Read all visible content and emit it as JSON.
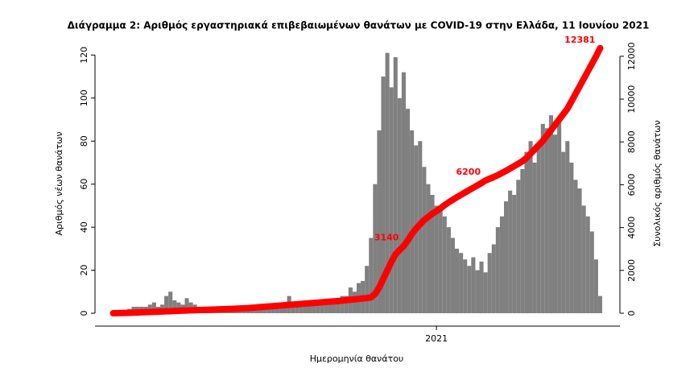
{
  "chart_data": {
    "type": "bar",
    "title": "Διάγραμμα 2: Αριθμός εργαστηριακά επιβεβαιωμένων θανάτων με COVID-19 στην Ελλάδα, 11 Ιουνίου 2021",
    "x_label": "Ημερομηνία θανάτου",
    "y_label": "Αριθμός νέων θανάτων",
    "y2_label": "Συνολικός αριθμός θανάτων",
    "categories": [
      null,
      null,
      null,
      null,
      null,
      null,
      null,
      null,
      null,
      null,
      null,
      null,
      null,
      null,
      null,
      null,
      null,
      null,
      null,
      null,
      null,
      null,
      null,
      null,
      null,
      null,
      null,
      null,
      null,
      null,
      null,
      null,
      null,
      null,
      null,
      null,
      null,
      null,
      null,
      null,
      null,
      null,
      null,
      null,
      null,
      null,
      null,
      null,
      null,
      null,
      null,
      null,
      null,
      null,
      null,
      null,
      null,
      null,
      null,
      null,
      null,
      null,
      null,
      null,
      null,
      null,
      null,
      null,
      null,
      null,
      null,
      null,
      null,
      null,
      null,
      null,
      null,
      null,
      null,
      "2021",
      null,
      null,
      null,
      null,
      null,
      null,
      null,
      null,
      null,
      null,
      null,
      null,
      null,
      null,
      null,
      null,
      null,
      null,
      null,
      null,
      null,
      null,
      null,
      null,
      null,
      null,
      null,
      null,
      null,
      null,
      null,
      null,
      null,
      null,
      null,
      null,
      null,
      null,
      null,
      null
    ],
    "series": [
      {
        "type": "bar",
        "color": "#808080",
        "values": [
          0,
          0,
          1,
          1,
          2,
          3,
          3,
          3,
          3,
          4,
          5,
          3,
          4,
          8,
          10,
          6,
          5,
          4,
          7,
          5,
          4,
          3,
          3,
          2,
          3,
          3,
          2,
          2,
          3,
          2,
          2,
          3,
          2,
          2,
          3,
          3,
          2,
          3,
          4,
          3,
          3,
          4,
          5,
          8,
          4,
          3,
          4,
          5,
          5,
          4,
          5,
          6,
          5,
          6,
          6,
          7,
          8,
          8,
          12,
          10,
          14,
          15,
          22,
          35,
          60,
          85,
          110,
          121,
          105,
          119,
          100,
          112,
          95,
          85,
          78,
          80,
          68,
          60,
          55,
          50,
          48,
          45,
          40,
          35,
          30,
          28,
          25,
          22,
          26,
          20,
          24,
          19,
          28,
          32,
          40,
          45,
          52,
          57,
          55,
          62,
          67,
          75,
          80,
          70,
          78,
          88,
          86,
          92,
          83,
          90,
          75,
          80,
          70,
          62,
          58,
          50,
          45,
          38,
          25,
          8
        ]
      },
      {
        "type": "line",
        "axis": "y2",
        "color": "#ff0000",
        "values": [
          0,
          5,
          10,
          15,
          20,
          28,
          35,
          42,
          50,
          57,
          65,
          72,
          80,
          88,
          96,
          104,
          112,
          120,
          127,
          134,
          141,
          148,
          155,
          162,
          169,
          176,
          183,
          190,
          197,
          204,
          211,
          220,
          230,
          240,
          255,
          270,
          285,
          300,
          315,
          330,
          345,
          360,
          375,
          390,
          405,
          420,
          435,
          450,
          465,
          480,
          495,
          510,
          525,
          540,
          555,
          570,
          590,
          610,
          630,
          650,
          670,
          690,
          710,
          740,
          900,
          1200,
          1600,
          2000,
          2400,
          2750,
          2950,
          3140,
          3400,
          3700,
          3950,
          4150,
          4350,
          4500,
          4650,
          4770,
          4900,
          5050,
          5180,
          5300,
          5420,
          5530,
          5640,
          5750,
          5860,
          5970,
          6080,
          6200,
          6280,
          6360,
          6450,
          6550,
          6650,
          6760,
          6870,
          6980,
          7100,
          7250,
          7450,
          7650,
          7850,
          8050,
          8300,
          8550,
          8800,
          9050,
          9300,
          9550,
          9900,
          10250,
          10600,
          10950,
          11300,
          11650,
          12000,
          12381
        ],
        "value_labels": [
          null,
          null,
          null,
          null,
          null,
          null,
          null,
          null,
          null,
          null,
          null,
          null,
          null,
          null,
          null,
          null,
          null,
          null,
          null,
          null,
          null,
          null,
          null,
          null,
          null,
          null,
          null,
          null,
          null,
          null,
          null,
          null,
          null,
          null,
          null,
          null,
          null,
          null,
          null,
          null,
          null,
          null,
          null,
          null,
          null,
          null,
          null,
          null,
          null,
          null,
          null,
          null,
          null,
          null,
          null,
          null,
          null,
          null,
          null,
          null,
          null,
          null,
          null,
          null,
          null,
          null,
          null,
          null,
          null,
          null,
          null,
          "3140",
          null,
          null,
          null,
          null,
          null,
          null,
          null,
          null,
          null,
          null,
          null,
          null,
          null,
          null,
          null,
          null,
          null,
          null,
          null,
          "6200",
          null,
          null,
          null,
          null,
          null,
          null,
          null,
          null,
          null,
          null,
          null,
          null,
          null,
          null,
          null,
          null,
          null,
          null,
          null,
          null,
          null,
          null,
          null,
          null,
          null,
          null,
          null,
          "12381"
        ]
      }
    ],
    "ylim": [
      0,
      125
    ],
    "yticks": [
      0,
      20,
      40,
      60,
      80,
      100,
      120
    ],
    "y2lim": [
      0,
      12560
    ],
    "y2ticks": [
      0,
      2000,
      4000,
      6000,
      8000,
      10000,
      12000
    ]
  }
}
